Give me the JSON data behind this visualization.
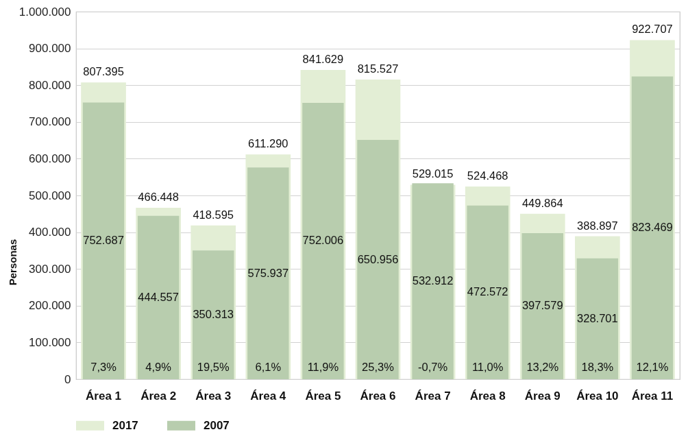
{
  "chart_data": {
    "type": "bar",
    "categories": [
      "Área 1",
      "Área 2",
      "Área 3",
      "Área 4",
      "Área 5",
      "Área 6",
      "Área 7",
      "Área 8",
      "Área 9",
      "Área 10",
      "Área 11"
    ],
    "series": [
      {
        "name": "2017",
        "color": "#e3eed5",
        "values": [
          807395,
          466448,
          418595,
          611290,
          841629,
          815527,
          529015,
          524468,
          449864,
          388897,
          922707
        ],
        "value_labels": [
          "807.395",
          "466.448",
          "418.595",
          "611.290",
          "841.629",
          "815.527",
          "529.015",
          "524.468",
          "449.864",
          "388.897",
          "922.707"
        ]
      },
      {
        "name": "2007",
        "color": "#b8cdae",
        "values": [
          752687,
          444557,
          350313,
          575937,
          752006,
          650956,
          532912,
          472572,
          397579,
          328701,
          823469
        ],
        "value_labels": [
          "752.687",
          "444.557",
          "350.313",
          "575.937",
          "752.006",
          "650.956",
          "532.912",
          "472.572",
          "397.579",
          "328.701",
          "823.469"
        ]
      }
    ],
    "ylabel": "Personas",
    "ylim": [
      0,
      1000000
    ],
    "yticks": [
      0,
      {
        "value": 100000,
        "label": "100.000"
      },
      {
        "value": 200000,
        "label": "200.000"
      },
      {
        "value": 300000,
        "label": "300.000"
      },
      {
        "value": 400000,
        "label": "400.000"
      },
      {
        "value": 500000,
        "label": "500.000"
      },
      {
        "value": 600000,
        "label": "600.000"
      },
      {
        "value": 700000,
        "label": "700.000"
      },
      {
        "value": 800000,
        "label": "800.000"
      },
      {
        "value": 900000,
        "label": "900.000"
      },
      {
        "value": 1000000,
        "label": "1.000.000"
      }
    ],
    "annotations": [
      "7,3%",
      "4,9%",
      "19,5%",
      "6,1%",
      "11,9%",
      "25,3%",
      "-0,7%",
      "11,0%",
      "13,2%",
      "18,3%",
      "12,1%"
    ],
    "grid": "y",
    "legend": "bottom left"
  }
}
